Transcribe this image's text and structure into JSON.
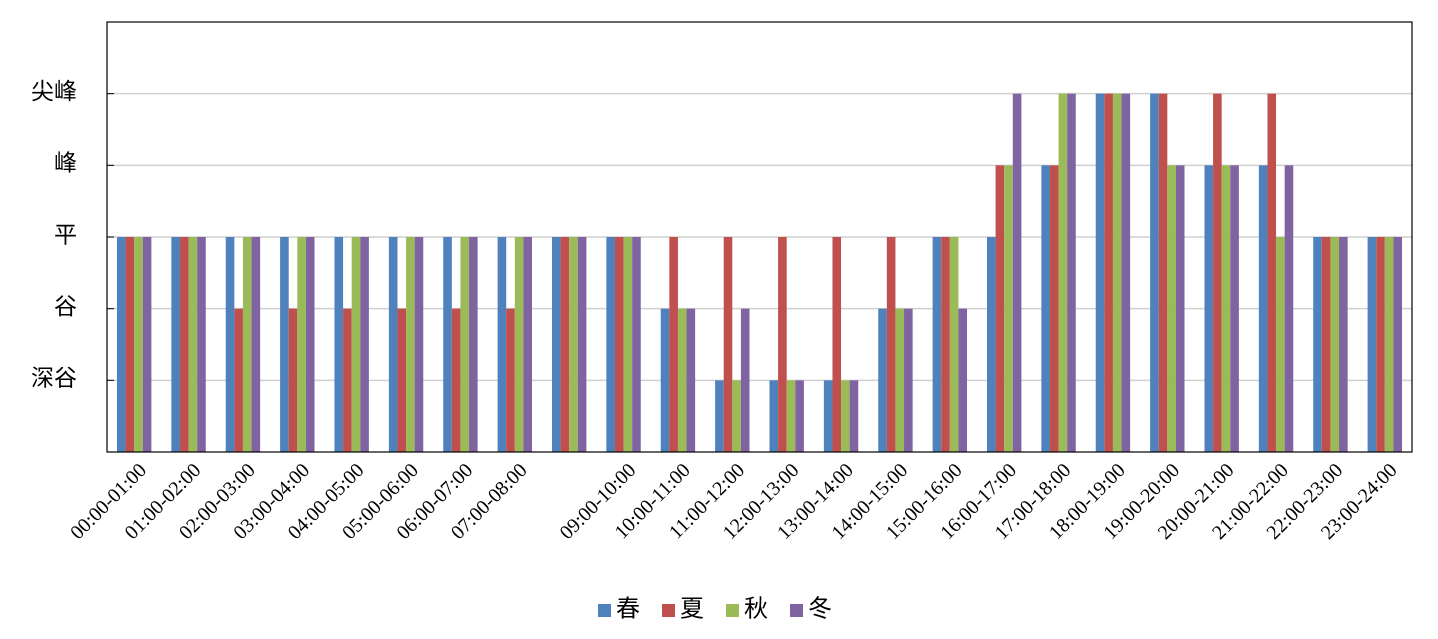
{
  "chart_data": {
    "type": "bar",
    "categories": [
      "00:00-01:00",
      "01:00-02:00",
      "02:00-03:00",
      "03:00-04:00",
      "04:00-05:00",
      "05:00-06:00",
      "06:00-07:00",
      "07:00-08:00",
      null,
      "09:00-10:00",
      "10:00-11:00",
      "11:00-12:00",
      "12:00-13:00",
      "13:00-14:00",
      "14:00-15:00",
      "15:00-16:00",
      "16:00-17:00",
      "17:00-18:00",
      "18:00-19:00",
      "19:00-20:00",
      "20:00-21:00",
      "21:00-22:00",
      "22:00-23:00",
      "23:00-24:00"
    ],
    "series": [
      {
        "name": "春",
        "color": "#4f81bd",
        "values": [
          3,
          3,
          3,
          3,
          3,
          3,
          3,
          3,
          3,
          3,
          2,
          1,
          1,
          1,
          2,
          3,
          3,
          4,
          5,
          5,
          4,
          4,
          3,
          3
        ]
      },
      {
        "name": "夏",
        "color": "#c0504d",
        "values": [
          3,
          3,
          2,
          2,
          2,
          2,
          2,
          2,
          3,
          3,
          3,
          3,
          3,
          3,
          3,
          3,
          4,
          4,
          5,
          5,
          5,
          5,
          3,
          3
        ]
      },
      {
        "name": "秋",
        "color": "#9bbb59",
        "values": [
          3,
          3,
          3,
          3,
          3,
          3,
          3,
          3,
          3,
          3,
          2,
          1,
          1,
          1,
          2,
          3,
          4,
          5,
          5,
          4,
          4,
          3,
          3,
          3
        ]
      },
      {
        "name": "冬",
        "color": "#8064a2",
        "values": [
          3,
          3,
          3,
          3,
          3,
          3,
          3,
          3,
          3,
          3,
          2,
          2,
          1,
          1,
          2,
          2,
          5,
          5,
          5,
          4,
          4,
          4,
          3,
          3
        ]
      }
    ],
    "ylim": [
      0,
      6
    ],
    "yticks": [
      {
        "value": 1,
        "label": "深谷"
      },
      {
        "value": 2,
        "label": "谷"
      },
      {
        "value": 3,
        "label": "平"
      },
      {
        "value": 4,
        "label": "峰"
      },
      {
        "value": 5,
        "label": "尖峰"
      }
    ],
    "grid": true,
    "legend": "bottom"
  }
}
